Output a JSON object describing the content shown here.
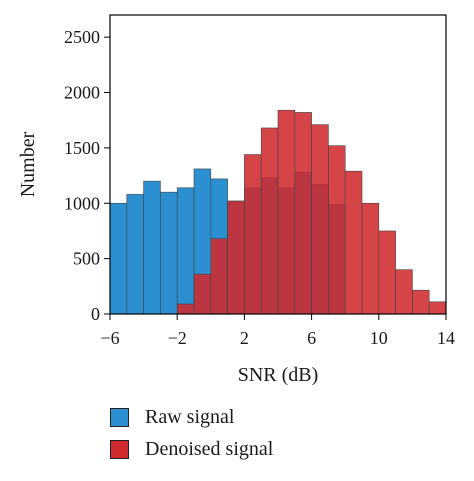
{
  "chart_data": {
    "type": "bar",
    "xlabel": "SNR (dB)",
    "ylabel": "Number",
    "xlim": [
      -6,
      14
    ],
    "ylim": [
      0,
      2700
    ],
    "xticks": [
      -6,
      -2,
      2,
      6,
      10,
      14
    ],
    "yticks": [
      0,
      500,
      1000,
      1500,
      2000,
      2500
    ],
    "bin_width": 1,
    "bin_starts": [
      -6,
      -5,
      -4,
      -3,
      -2,
      -1,
      0,
      1,
      2,
      3,
      4,
      5,
      6,
      7,
      8,
      9,
      10,
      11,
      12,
      13
    ],
    "legend_position": "bottom",
    "series": [
      {
        "name": "Raw signal",
        "color": "#2b8fd0",
        "values": [
          1000,
          1080,
          1200,
          1100,
          1140,
          1310,
          1220,
          1020,
          1140,
          1230,
          1140,
          1280,
          1170,
          990,
          0,
          0,
          0,
          0,
          0,
          0
        ]
      },
      {
        "name": "Denoised signal",
        "color": "#cf2a2e",
        "values": [
          0,
          0,
          0,
          0,
          90,
          360,
          680,
          1020,
          1440,
          1680,
          1840,
          1820,
          1710,
          1520,
          1290,
          1000,
          750,
          400,
          215,
          110
        ]
      }
    ]
  },
  "legend": {
    "items": [
      {
        "label": "Raw signal",
        "color": "#2b8fd0"
      },
      {
        "label": "Denoised signal",
        "color": "#cf2a2e"
      }
    ]
  }
}
